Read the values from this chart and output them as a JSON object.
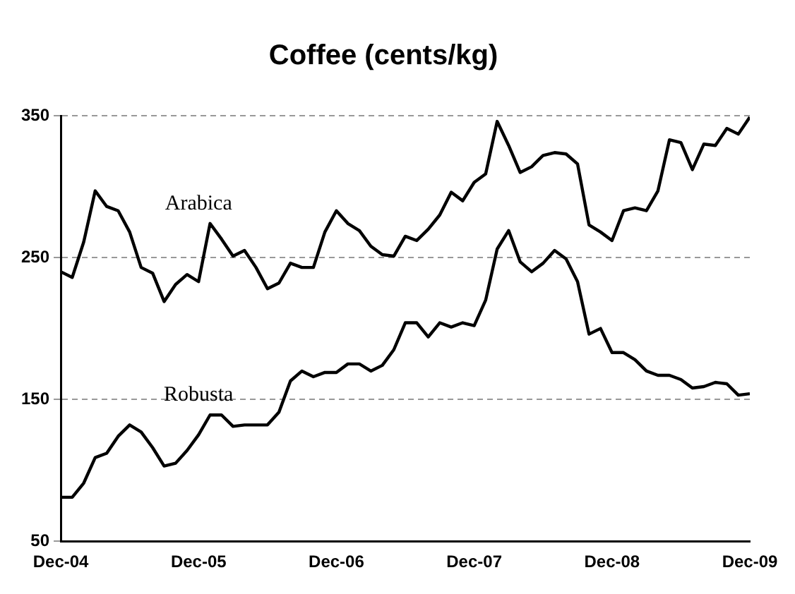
{
  "chart_data": {
    "type": "line",
    "title": "Coffee (cents/kg)",
    "x": [
      "2004-12",
      "2005-01",
      "2005-02",
      "2005-03",
      "2005-04",
      "2005-05",
      "2005-06",
      "2005-07",
      "2005-08",
      "2005-09",
      "2005-10",
      "2005-11",
      "2005-12",
      "2006-01",
      "2006-02",
      "2006-03",
      "2006-04",
      "2006-05",
      "2006-06",
      "2006-07",
      "2006-08",
      "2006-09",
      "2006-10",
      "2006-11",
      "2006-12",
      "2007-01",
      "2007-02",
      "2007-03",
      "2007-04",
      "2007-05",
      "2007-06",
      "2007-07",
      "2007-08",
      "2007-09",
      "2007-10",
      "2007-11",
      "2007-12",
      "2008-01",
      "2008-02",
      "2008-03",
      "2008-04",
      "2008-05",
      "2008-06",
      "2008-07",
      "2008-08",
      "2008-09",
      "2008-10",
      "2008-11",
      "2008-12",
      "2009-01",
      "2009-02",
      "2009-03",
      "2009-04",
      "2009-05",
      "2009-06",
      "2009-07",
      "2009-08",
      "2009-09",
      "2009-10",
      "2009-11",
      "2009-12"
    ],
    "series": [
      {
        "name": "Arabica",
        "color": "#000000",
        "values": [
          240,
          236,
          261,
          297,
          286,
          283,
          268,
          243,
          239,
          219,
          231,
          238,
          233,
          274,
          263,
          251,
          255,
          243,
          228,
          232,
          246,
          243,
          243,
          268,
          283,
          274,
          269,
          258,
          252,
          251,
          265,
          262,
          270,
          280,
          296,
          290,
          303,
          309,
          346,
          329,
          310,
          314,
          322,
          324,
          323,
          316,
          273,
          268,
          262,
          283,
          285,
          283,
          297,
          333,
          331,
          312,
          330,
          329,
          341,
          337,
          349
        ]
      },
      {
        "name": "Robusta",
        "color": "#000000",
        "values": [
          81,
          81,
          91,
          109,
          112,
          124,
          132,
          127,
          116,
          103,
          105,
          114,
          125,
          139,
          139,
          131,
          132,
          132,
          132,
          141,
          163,
          170,
          166,
          169,
          169,
          175,
          175,
          170,
          174,
          185,
          204,
          204,
          194,
          204,
          201,
          204,
          202,
          220,
          256,
          269,
          247,
          240,
          246,
          255,
          249,
          233,
          196,
          200,
          183,
          183,
          178,
          170,
          167,
          167,
          164,
          158,
          159,
          162,
          161,
          153,
          154
        ]
      }
    ],
    "xlim": [
      "2004-12",
      "2009-12"
    ],
    "xticks": [
      {
        "value": "2004-12",
        "label": "Dec-04"
      },
      {
        "value": "2005-12",
        "label": "Dec-05"
      },
      {
        "value": "2006-12",
        "label": "Dec-06"
      },
      {
        "value": "2007-12",
        "label": "Dec-07"
      },
      {
        "value": "2008-12",
        "label": "Dec-08"
      },
      {
        "value": "2009-12",
        "label": "Dec-09"
      }
    ],
    "ylim": [
      50,
      350
    ],
    "yticks": [
      50,
      150,
      250,
      350
    ],
    "grid": "y"
  }
}
